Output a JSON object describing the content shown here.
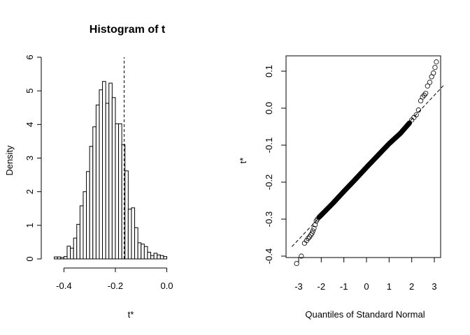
{
  "chart_data": [
    {
      "type": "histogram",
      "title": "Histogram of t",
      "xlabel": "t*",
      "ylabel": "Density",
      "xlim": [
        -0.45,
        0.14
      ],
      "ylim": [
        0,
        6
      ],
      "x_ticks": [
        "-0.4",
        "-0.2",
        "0.0"
      ],
      "y_ticks": [
        "0",
        "1",
        "2",
        "3",
        "4",
        "5",
        "6"
      ],
      "bin_width": 0.0125,
      "bin_start": -0.4375,
      "densities": [
        0.06,
        0.06,
        0.04,
        0.07,
        0.38,
        0.32,
        0.62,
        1.03,
        1.58,
        2.0,
        2.6,
        3.35,
        3.93,
        4.58,
        5.03,
        5.28,
        4.63,
        5.23,
        4.8,
        4.02,
        4.02,
        3.4,
        2.62,
        1.48,
        1.52,
        0.93,
        0.48,
        0.44,
        0.37,
        0.2,
        0.1,
        0.17,
        0.12,
        0.1,
        0.07
      ],
      "reference_line": {
        "x": -0.166,
        "style": "dashed"
      }
    },
    {
      "type": "scatter",
      "subtype": "normal-qq",
      "xlabel": "Quantiles of Standard Normal",
      "ylabel": "t*",
      "xlim": [
        -3.3,
        3.3
      ],
      "ylim": [
        -0.43,
        0.14
      ],
      "x_ticks": [
        "-3",
        "-2",
        "-1",
        "0",
        "1",
        "2",
        "3"
      ],
      "y_ticks": [
        "-0.4",
        "-0.3",
        "-0.2",
        "-0.1",
        "0.0",
        "0.1"
      ],
      "points_summary": {
        "n": 999,
        "lower_tail": [
          [
            -3.09,
            -0.42
          ],
          [
            -2.88,
            -0.4
          ],
          [
            -2.74,
            -0.365
          ],
          [
            -2.65,
            -0.358
          ],
          [
            -2.58,
            -0.352
          ],
          [
            -2.52,
            -0.348
          ],
          [
            -2.46,
            -0.343
          ],
          [
            -2.41,
            -0.338
          ],
          [
            -2.37,
            -0.332
          ],
          [
            -2.32,
            -0.325
          ],
          [
            -2.27,
            -0.315
          ],
          [
            -2.22,
            -0.305
          ],
          [
            -2.17,
            -0.3
          ]
        ],
        "body": [
          [
            -2.1,
            -0.295
          ],
          [
            -1.5,
            -0.258
          ],
          [
            -1.0,
            -0.225
          ],
          [
            -0.5,
            -0.193
          ],
          [
            0.0,
            -0.16
          ],
          [
            0.5,
            -0.128
          ],
          [
            1.0,
            -0.096
          ],
          [
            1.5,
            -0.068
          ],
          [
            1.9,
            -0.04
          ]
        ],
        "upper_tail": [
          [
            2.0,
            -0.032
          ],
          [
            2.1,
            -0.025
          ],
          [
            2.2,
            -0.018
          ],
          [
            2.3,
            -0.005
          ],
          [
            2.4,
            0.02
          ],
          [
            2.48,
            0.03
          ],
          [
            2.55,
            0.035
          ],
          [
            2.62,
            0.04
          ],
          [
            2.7,
            0.06
          ],
          [
            2.8,
            0.07
          ],
          [
            2.88,
            0.085
          ],
          [
            2.96,
            0.095
          ],
          [
            3.03,
            0.11
          ],
          [
            3.09,
            0.125
          ]
        ]
      },
      "reference_line": {
        "slope": 0.065,
        "intercept": -0.16,
        "style": "dashed"
      }
    }
  ]
}
